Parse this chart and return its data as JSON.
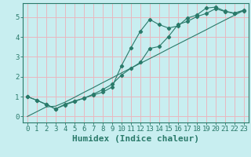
{
  "xlabel": "Humidex (Indice chaleur)",
  "ylabel": "",
  "bg_color": "#c8eef0",
  "grid_color": "#e8b8c0",
  "line_color": "#2a7a6a",
  "spine_color": "#2a7a6a",
  "xlim": [
    -0.5,
    23.5
  ],
  "ylim": [
    -0.3,
    5.7
  ],
  "x_data": [
    0,
    1,
    2,
    3,
    4,
    5,
    6,
    7,
    8,
    9,
    10,
    11,
    12,
    13,
    14,
    15,
    16,
    17,
    18,
    19,
    20,
    21,
    22,
    23
  ],
  "y1_data": [
    1.0,
    0.82,
    0.6,
    0.38,
    0.62,
    0.78,
    0.92,
    1.08,
    1.22,
    1.48,
    2.55,
    3.45,
    4.28,
    4.88,
    4.62,
    4.45,
    4.55,
    4.95,
    5.1,
    5.45,
    5.5,
    5.3,
    5.2,
    5.35
  ],
  "y2_data": [
    1.0,
    0.82,
    0.62,
    0.38,
    0.58,
    0.75,
    0.92,
    1.12,
    1.35,
    1.62,
    2.08,
    2.42,
    2.72,
    3.42,
    3.52,
    4.02,
    4.62,
    4.78,
    5.02,
    5.18,
    5.42,
    5.28,
    5.18,
    5.32
  ],
  "y3_data": [
    0.0,
    0.24,
    0.48,
    0.52,
    0.72,
    0.96,
    1.21,
    1.45,
    1.7,
    1.94,
    2.19,
    2.43,
    2.67,
    2.91,
    3.15,
    3.4,
    3.64,
    3.88,
    4.12,
    4.36,
    4.61,
    4.85,
    5.09,
    5.33
  ],
  "xtick_labels": [
    "0",
    "1",
    "2",
    "3",
    "4",
    "5",
    "6",
    "7",
    "8",
    "9",
    "10",
    "11",
    "12",
    "13",
    "14",
    "15",
    "16",
    "17",
    "18",
    "19",
    "20",
    "21",
    "22",
    "23"
  ],
  "ytick_labels": [
    "0",
    "1",
    "2",
    "3",
    "4",
    "5"
  ],
  "font_family": "monospace",
  "tick_fontsize": 6.5,
  "label_fontsize": 8
}
